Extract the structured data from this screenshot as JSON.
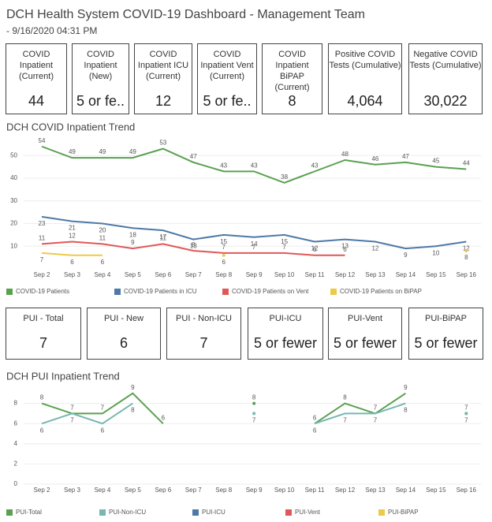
{
  "header": {
    "title": "DCH Health System COVID-19 Dashboard - Management Team",
    "subtitle": " - 9/16/2020 04:31 PM"
  },
  "kpis": [
    {
      "label": "COVID Inpatient (Current)",
      "value": "44"
    },
    {
      "label": "COVID Inpatient (New)",
      "value": "5 or fe.."
    },
    {
      "label": "COVID Inpatient ICU (Current)",
      "value": "12"
    },
    {
      "label": "COVID Inpatient Vent (Current)",
      "value": "5 or fe.."
    },
    {
      "label": "COVID Inpatient BiPAP (Current)",
      "value": "8"
    },
    {
      "label": "Positive COVID Tests (Cumulative)",
      "value": "4,064"
    },
    {
      "label": "Negative COVID Tests (Cumulative)",
      "value": "30,022"
    }
  ],
  "pui_kpis": [
    {
      "label": "PUI - Total",
      "value": "7"
    },
    {
      "label": "PUI - New",
      "value": "6"
    },
    {
      "label": "PUI - Non-ICU",
      "value": "7"
    },
    {
      "label": "PUI-ICU",
      "value": "5 or fewer"
    },
    {
      "label": "PUI-Vent",
      "value": "5 or fewer"
    },
    {
      "label": "PUI-BiPAP",
      "value": "5 or fewer"
    }
  ],
  "chart_data": [
    {
      "type": "line",
      "title": "DCH COVID Inpatient Trend",
      "categories": [
        "Sep 2",
        "Sep 3",
        "Sep 4",
        "Sep 5",
        "Sep 6",
        "Sep 7",
        "Sep 8",
        "Sep 9",
        "Sep 10",
        "Sep 11",
        "Sep 12",
        "Sep 13",
        "Sep 14",
        "Sep 15",
        "Sep 16"
      ],
      "ylim": [
        0,
        56
      ],
      "yticks": [
        10,
        20,
        30,
        40,
        50
      ],
      "series": [
        {
          "name": "COVID-19 Patients",
          "color": "#59a14f",
          "values": [
            54,
            49,
            49,
            49,
            53,
            47,
            43,
            43,
            38,
            43,
            48,
            46,
            47,
            45,
            44
          ]
        },
        {
          "name": "COVID-19 Patients in ICU",
          "color": "#4e79a7",
          "values": [
            23,
            21,
            20,
            18,
            17,
            13,
            15,
            14,
            15,
            12,
            13,
            12,
            9,
            10,
            12
          ]
        },
        {
          "name": "COVID-19 Patients on Vent",
          "color": "#e15759",
          "values": [
            11,
            12,
            11,
            9,
            11,
            8,
            7,
            7,
            7,
            6,
            6,
            null,
            null,
            null,
            null
          ]
        },
        {
          "name": "COVID-19 Patients on BiPAP",
          "color": "#edc948",
          "values": [
            7,
            6,
            6,
            null,
            null,
            null,
            6,
            null,
            null,
            null,
            null,
            null,
            null,
            null,
            8
          ]
        }
      ]
    },
    {
      "type": "line",
      "title": "DCH PUI Inpatient Trend",
      "categories": [
        "Sep 2",
        "Sep 3",
        "Sep 4",
        "Sep 5",
        "Sep 6",
        "Sep 7",
        "Sep 8",
        "Sep 9",
        "Sep 10",
        "Sep 11",
        "Sep 12",
        "Sep 13",
        "Sep 14",
        "Sep 15",
        "Sep 16"
      ],
      "ylim": [
        0,
        10
      ],
      "yticks": [
        0,
        2,
        4,
        6,
        8
      ],
      "series": [
        {
          "name": "PUI-Total",
          "color": "#59a14f",
          "values": [
            8,
            7,
            7,
            9,
            6,
            null,
            null,
            8,
            null,
            6,
            8,
            7,
            9,
            null,
            7
          ]
        },
        {
          "name": "PUI-Non-ICU",
          "color": "#76b7b2",
          "values": [
            6,
            7,
            6,
            8,
            null,
            null,
            null,
            7,
            null,
            6,
            7,
            7,
            8,
            null,
            7
          ]
        },
        {
          "name": "PUI-ICU",
          "color": "#4e79a7",
          "values": [
            null,
            null,
            null,
            null,
            null,
            null,
            null,
            null,
            null,
            null,
            null,
            null,
            null,
            null,
            null
          ]
        },
        {
          "name": "PUI-Vent",
          "color": "#e15759",
          "values": [
            null,
            null,
            null,
            null,
            null,
            null,
            null,
            null,
            null,
            null,
            null,
            null,
            null,
            null,
            null
          ]
        },
        {
          "name": "PUI-BiPAP",
          "color": "#edc948",
          "values": [
            null,
            null,
            null,
            null,
            null,
            null,
            null,
            null,
            null,
            null,
            null,
            null,
            null,
            null,
            null
          ]
        }
      ]
    }
  ]
}
